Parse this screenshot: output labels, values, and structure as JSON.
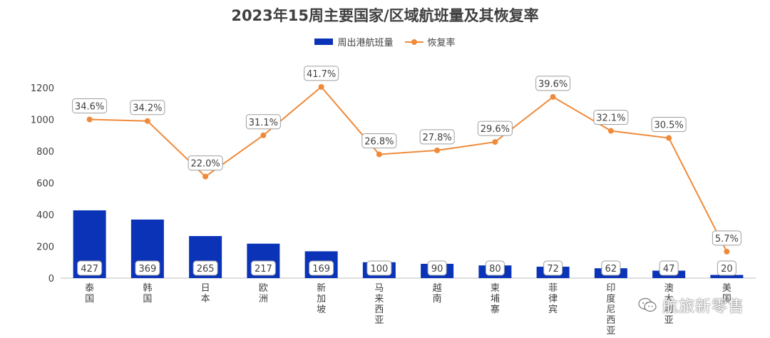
{
  "title": "2023年15周主要国家/区域航班量及其恢复率",
  "legend": {
    "bar_label": "周出港航班量",
    "line_label": "恢复率"
  },
  "colors": {
    "bar": "#0a33b8",
    "line": "#ef8a3a",
    "axis_text": "#404040",
    "grid": "#d9d9d9"
  },
  "watermark": "航旅新零售",
  "chart_data": {
    "type": "bar",
    "categories": [
      "泰国",
      "韩国",
      "日本",
      "欧洲",
      "新加坡",
      "马来西亚",
      "越南",
      "柬埔寨",
      "菲律宾",
      "印度尼西亚",
      "澳大利亚",
      "美国"
    ],
    "ylim": [
      0,
      1200
    ],
    "yticks": [
      0,
      200,
      400,
      600,
      800,
      1000,
      1200
    ],
    "grid": false,
    "legend_position": "top",
    "series": [
      {
        "name": "周出港航班量",
        "type": "bar",
        "values": [
          427,
          369,
          265,
          217,
          169,
          100,
          90,
          80,
          72,
          62,
          47,
          20
        ]
      },
      {
        "name": "恢复率",
        "type": "line",
        "labels": [
          "34.6%",
          "34.2%",
          "22.0%",
          "31.1%",
          "41.7%",
          "26.8%",
          "27.8%",
          "29.6%",
          "39.6%",
          "32.1%",
          "30.5%",
          "5.7%"
        ],
        "values": [
          1000,
          990,
          640,
          900,
          1205,
          780,
          805,
          858,
          1142,
          928,
          883,
          167
        ]
      }
    ]
  }
}
